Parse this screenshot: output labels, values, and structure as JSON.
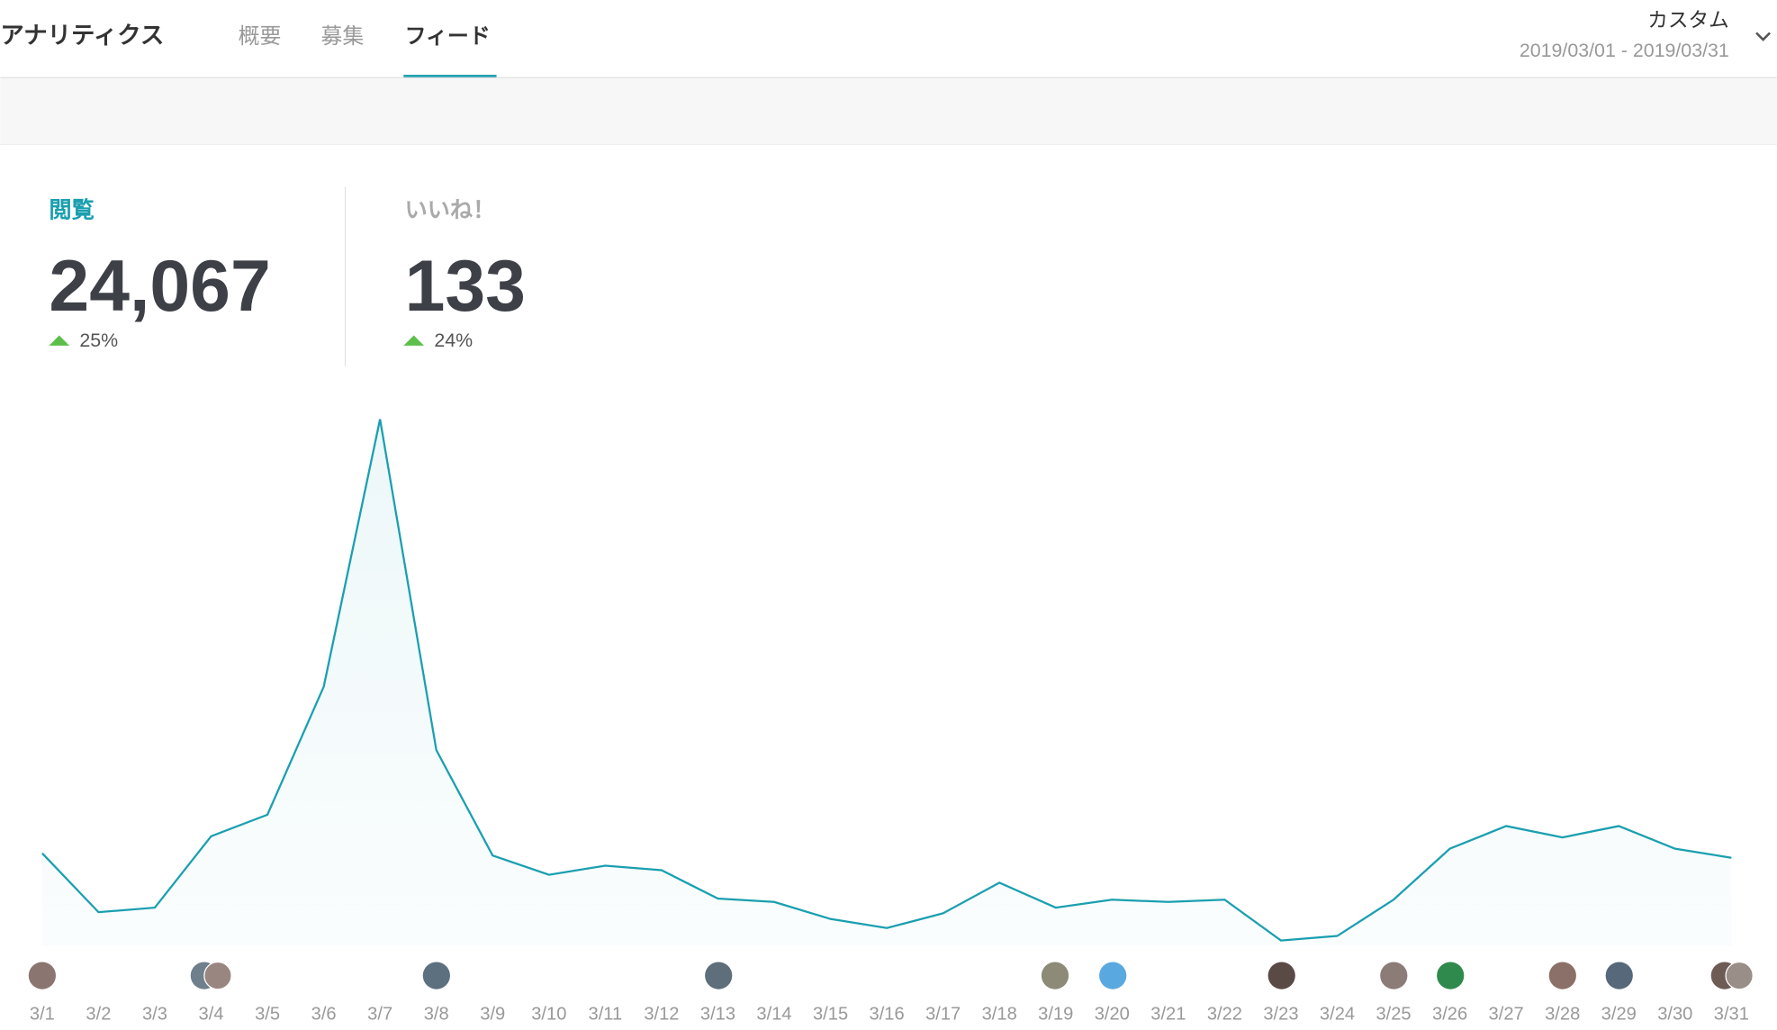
{
  "header": {
    "title": "アナリティクス",
    "tabs": [
      "概要",
      "募集",
      "フィード"
    ],
    "range_label": "カスタム",
    "date_range": "2019/03/01 - 2019/03/31"
  },
  "stats": [
    {
      "label": "閲覧",
      "value": "24,067",
      "change": "25%"
    },
    {
      "label": "いいね！",
      "value": "133",
      "change": "24%"
    }
  ],
  "chart_data": {
    "type": "line",
    "color": "#1a9fb0",
    "categories": [
      "3/1",
      "3/2",
      "3/3",
      "3/4",
      "3/5",
      "3/6",
      "3/7",
      "3/8",
      "3/9",
      "3/10",
      "3/11",
      "3/12",
      "3/13",
      "3/14",
      "3/15",
      "3/16",
      "3/17",
      "3/18",
      "3/19",
      "3/20",
      "3/21",
      "3/22",
      "3/23",
      "3/24",
      "3/25",
      "3/26",
      "3/27",
      "3/28",
      "3/29",
      "3/30",
      "3/31"
    ],
    "values": [
      82,
      30,
      34,
      97,
      116,
      229,
      465,
      173,
      80,
      63,
      71,
      67,
      42,
      39,
      24,
      16,
      29,
      56,
      34,
      41,
      39,
      41,
      5,
      9,
      41,
      86,
      106,
      96,
      106,
      86,
      78
    ],
    "ylim": [
      0,
      480
    ]
  }
}
